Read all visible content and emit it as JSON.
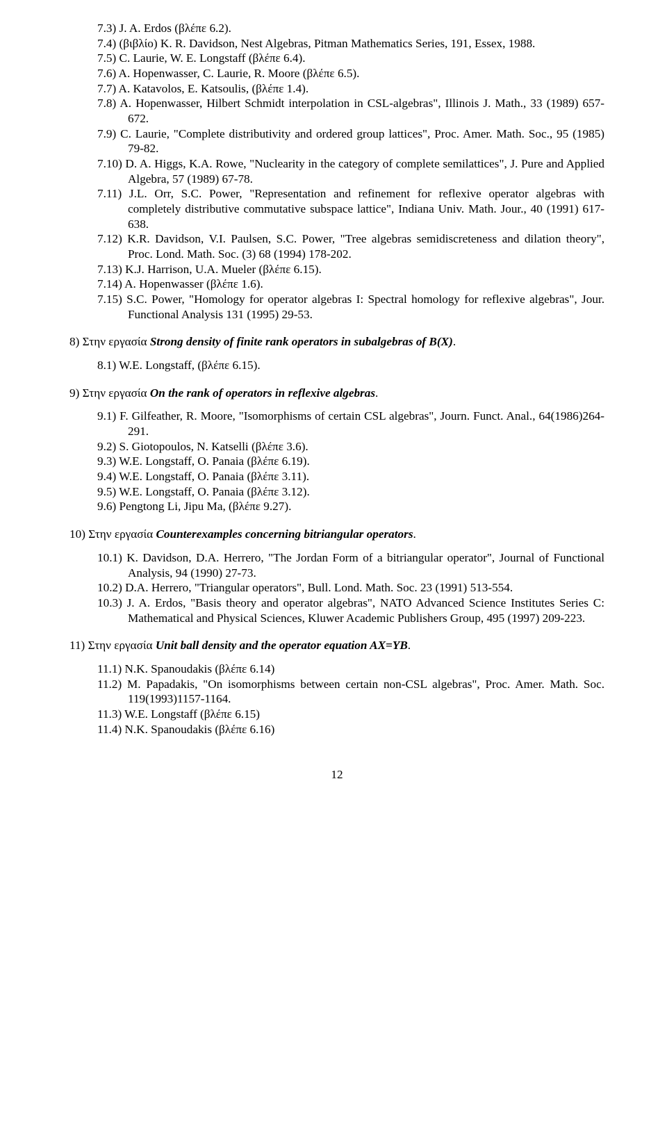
{
  "refs7": [
    "7.3) J. A. Erdos (βλέπε 6.2).",
    "7.4) (βιβλίο) K. R. Davidson, Nest Algebras, Pitman Mathematics Series, 191, Essex, 1988.",
    "7.5) C. Laurie, W. E. Longstaff (βλέπε 6.4).",
    "7.6) A. Hopenwasser, C. Laurie, R. Moore (βλέπε 6.5).",
    "7.7) A. Katavolos, E. Katsoulis, (βλέπε 1.4).",
    "7.8) A. Hopenwasser, Hilbert Schmidt interpolation in CSL-algebras\", Illinois J. Math., 33 (1989) 657-672.",
    "7.9) C. Laurie, \"Complete distributivity and ordered group lattices\", Proc. Amer. Math. Soc., 95 (1985) 79-82.",
    "7.10) D. A. Higgs, K.A. Rowe, \"Nuclearity in the category of complete semilattices\", J. Pure and Applied Algebra, 57 (1989) 67-78.",
    "7.11) J.L. Orr, S.C. Power, \"Representation and refinement for reflexive operator algebras with completely distributive commutative subspace lattice\", Indiana Univ. Math. Jour., 40 (1991) 617-638.",
    "7.12) K.R. Davidson, V.I. Paulsen, S.C. Power, \"Tree algebras semidiscreteness and dilation theory\", Proc. Lond. Math. Soc. (3) 68 (1994) 178-202.",
    "7.13)  K.J. Harrison, U.A. Mueler (βλέπε 6.15).",
    "7.14)  A. Hopenwasser (βλέπε 1.6).",
    "7.15) S.C. Power, \"Homology for operator algebras I: Spectral homology for reflexive algebras\", Jour. Functional Analysis 131 (1995) 29-53."
  ],
  "section8_pre": "8) Στην εργασία ",
  "section8_title": "Strong density of finite rank operators in subalgebras of B(X)",
  "section8_post": ".",
  "refs8": [
    "8.1) W.E. Longstaff, (βλέπε 6.15)."
  ],
  "section9_pre": "9) Στην εργασία ",
  "section9_title": "On the rank of operators in reflexive algebras",
  "section9_post": ".",
  "refs9": [
    "9.1) F. Gilfeather, R. Moore, \"Isomorphisms of certain CSL algebras\", Journ. Funct. Anal., 64(1986)264-291.",
    "9.2) S. Giotopoulos, N. Katselli (βλέπε 3.6).",
    "9.3) W.E. Longstaff, O. Panaia (βλέπε 6.19).",
    "9.4) W.E. Longstaff, O. Panaia (βλέπε 3.11).",
    "9.5) W.E. Longstaff, O. Panaia (βλέπε 3.12).",
    "9.6) Pengtong Li, Jipu Ma, (βλέπε 9.27)."
  ],
  "section10_pre": "10) Στην εργασία ",
  "section10_title": "Counterexamples concerning bitriangular operators",
  "section10_post": ".",
  "refs10": [
    "10.1) K. Davidson, D.A. Herrero, \"The Jordan Form of a bitriangular operator\", Journal of Functional Analysis, 94 (1990) 27-73.",
    "10.2) D.A. Herrero, \"Triangular operators\", Bull. Lond. Math. Soc. 23 (1991) 513-554.",
    "10.3) J. A. Erdos, \"Basis theory and operator algebras\", NATO Advanced Science Institutes Series C: Mathematical and Physical Sciences, Kluwer Academic Publishers Group, 495 (1997) 209-223."
  ],
  "section11_pre": "11) Στην εργασία ",
  "section11_title": "Unit ball density and the operator equation AX=YB",
  "section11_post": ".",
  "refs11": [
    "11.1) N.K. Spanoudakis (βλέπε 6.14)",
    "11.2) M. Papadakis, \"On isomorphisms between certain non-CSL algebras\", Proc. Amer. Math. Soc. 119(1993)1157-1164.",
    "11.3) W.E. Longstaff (βλέπε 6.15)",
    "11.4) N.K. Spanoudakis (βλέπε 6.16)"
  ],
  "page_number": "12"
}
